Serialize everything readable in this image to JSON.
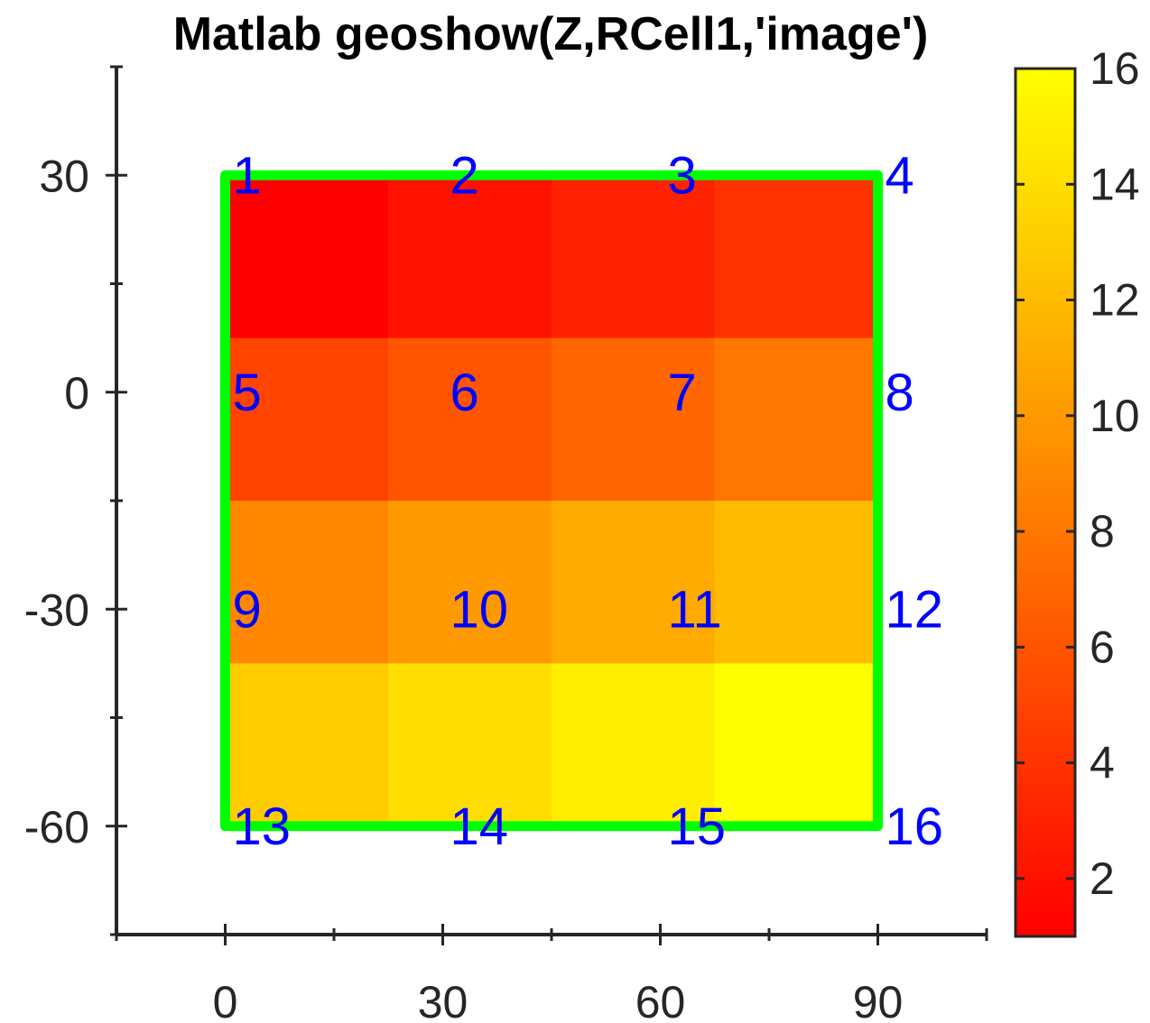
{
  "chart_data": {
    "type": "heatmap",
    "title": "Matlab geoshow(Z,RCell1,'image')",
    "xlabel": "",
    "ylabel": "",
    "xlim": [
      -15,
      105
    ],
    "ylim": [
      -75,
      45
    ],
    "x_ticks": [
      0,
      30,
      60,
      90
    ],
    "y_ticks": [
      30,
      0,
      -30,
      -60
    ],
    "x_tick_labels": [
      "0",
      "30",
      "60",
      "90"
    ],
    "y_tick_labels": [
      "30",
      "0",
      "-30",
      "-60"
    ],
    "grid": false,
    "colormap": "autumn",
    "colorbar": {
      "location": "right",
      "range": [
        1,
        16
      ],
      "ticks": [
        2,
        4,
        6,
        8,
        10,
        12,
        14,
        16
      ],
      "tick_labels": [
        "2",
        "4",
        "6",
        "8",
        "10",
        "12",
        "14",
        "16"
      ]
    },
    "image": {
      "x_extent": [
        0,
        90
      ],
      "y_extent": [
        -60,
        30
      ],
      "rows": [
        [
          1,
          2,
          3,
          4
        ],
        [
          5,
          6,
          7,
          8
        ],
        [
          9,
          10,
          11,
          12
        ],
        [
          13,
          14,
          15,
          16
        ]
      ]
    },
    "outline": {
      "color": "#00ff00",
      "x": [
        0,
        90,
        90,
        0,
        0
      ],
      "y": [
        30,
        30,
        -60,
        -60,
        30
      ]
    },
    "point_labels": [
      {
        "text": "1",
        "x": 0,
        "y": 30
      },
      {
        "text": "2",
        "x": 30,
        "y": 30
      },
      {
        "text": "3",
        "x": 60,
        "y": 30
      },
      {
        "text": "4",
        "x": 90,
        "y": 30
      },
      {
        "text": "5",
        "x": 0,
        "y": 0
      },
      {
        "text": "6",
        "x": 30,
        "y": 0
      },
      {
        "text": "7",
        "x": 60,
        "y": 0
      },
      {
        "text": "8",
        "x": 90,
        "y": 0
      },
      {
        "text": "9",
        "x": 0,
        "y": -30
      },
      {
        "text": "10",
        "x": 30,
        "y": -30
      },
      {
        "text": "11",
        "x": 60,
        "y": -30
      },
      {
        "text": "12",
        "x": 90,
        "y": -30
      },
      {
        "text": "13",
        "x": 0,
        "y": -60
      },
      {
        "text": "14",
        "x": 30,
        "y": -60
      },
      {
        "text": "15",
        "x": 60,
        "y": -60
      },
      {
        "text": "16",
        "x": 90,
        "y": -60
      }
    ]
  }
}
